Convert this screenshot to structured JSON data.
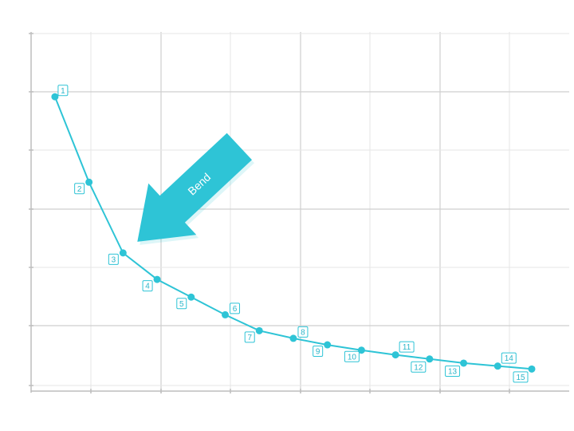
{
  "chart_data": {
    "type": "line",
    "title": "",
    "xlabel": "",
    "ylabel": "",
    "x": [
      1,
      2,
      3,
      4,
      5,
      6,
      7,
      8,
      9,
      10,
      11,
      12,
      13,
      14,
      15
    ],
    "series": [
      {
        "values": [
          4.9,
          3.45,
          2.25,
          1.8,
          1.5,
          1.2,
          0.93,
          0.8,
          0.69,
          0.6,
          0.52,
          0.45,
          0.38,
          0.33,
          0.28
        ],
        "point_labels": [
          "1",
          "2",
          "3",
          "4",
          "5",
          "6",
          "7",
          "8",
          "9",
          "10",
          "11",
          "12",
          "13",
          "14",
          "15"
        ]
      }
    ],
    "xlim": [
      0.3,
      16.1
    ],
    "ylim": [
      0,
      6
    ],
    "grid": true,
    "tick_labels_visible": false,
    "annotation": {
      "text": "Bend",
      "points_to_x": 3,
      "color": "#2ec4d6"
    },
    "colors": {
      "series": "#2ec4d6",
      "label_text": "#2bb5c9",
      "grid": "#e0e0e0",
      "axis": "#bdbdbd"
    }
  }
}
